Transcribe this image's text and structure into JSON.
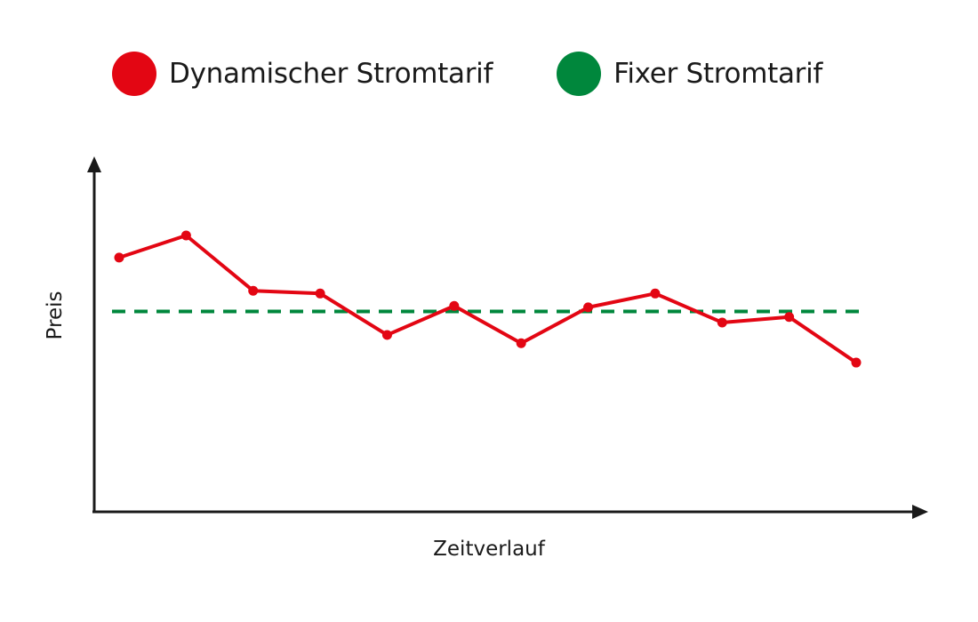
{
  "chart_data": {
    "type": "line",
    "title": "",
    "xlabel": "Zeitverlauf",
    "ylabel": "Preis",
    "x": [
      1,
      2,
      3,
      4,
      5,
      6,
      7,
      8,
      9,
      10,
      11,
      12
    ],
    "ylim": [
      0,
      100
    ],
    "legend_position": "top-left",
    "grid": false,
    "series": [
      {
        "name": "Dynamischer Stromtarif",
        "color": "#e30613",
        "style": "solid",
        "markers": true,
        "values": [
          92,
          100,
          80,
          79,
          64,
          74.5,
          61,
          74,
          79,
          68.5,
          70.5,
          54
        ]
      },
      {
        "name": "Fixer Stromtarif",
        "color": "#00873c",
        "style": "dashed",
        "markers": false,
        "values": [
          72.5,
          72.5,
          72.5,
          72.5,
          72.5,
          72.5,
          72.5,
          72.5,
          72.5,
          72.5,
          72.5,
          72.5
        ]
      }
    ]
  }
}
